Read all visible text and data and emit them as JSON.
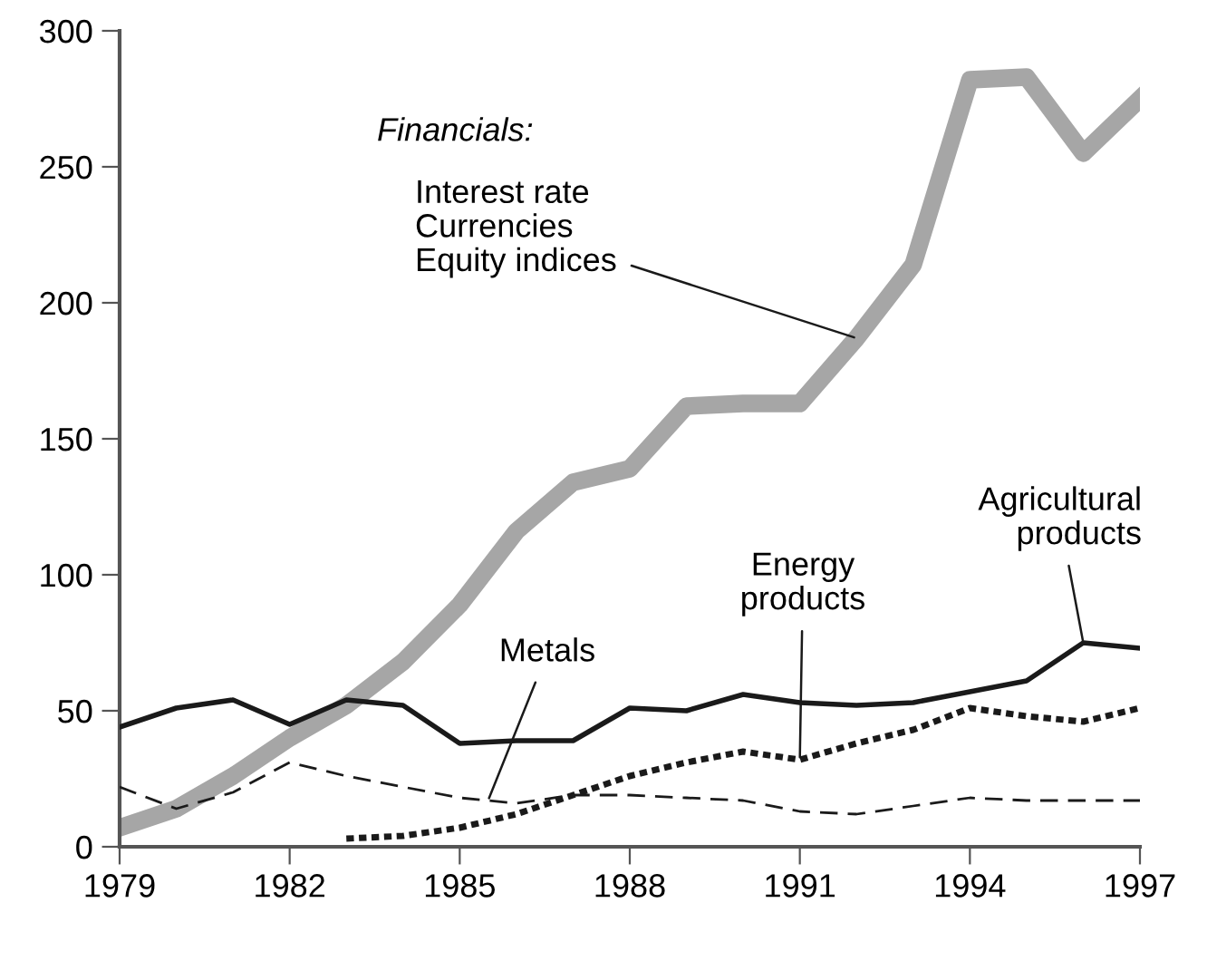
{
  "chart_data": {
    "type": "line",
    "x": [
      1979,
      1980,
      1981,
      1982,
      1983,
      1984,
      1985,
      1986,
      1987,
      1988,
      1989,
      1990,
      1991,
      1992,
      1993,
      1994,
      1995,
      1996,
      1997
    ],
    "series": [
      {
        "color": "#a6a6a6",
        "line_style": "solid",
        "values": [
          7,
          14,
          26,
          40,
          52,
          68,
          89,
          116,
          134,
          139,
          162,
          163,
          163,
          187,
          214,
          282,
          283,
          255,
          275
        ]
      },
      {
        "color": "#1a1a1a",
        "line_style": "solid",
        "values": [
          44,
          51,
          54,
          45,
          54,
          52,
          38,
          39,
          39,
          51,
          50,
          56,
          53,
          52,
          53,
          57,
          61,
          75,
          73
        ]
      },
      {
        "color": "#1a1a1a",
        "line_style": "dashed",
        "values": [
          22,
          14,
          20,
          31,
          26,
          22,
          18,
          16,
          19,
          19,
          18,
          17,
          13,
          12,
          15,
          18,
          17,
          17,
          17
        ]
      },
      {
        "color": "#1a1a1a",
        "line_style": "dotted",
        "values": [
          null,
          null,
          null,
          null,
          3,
          4,
          7,
          12,
          19,
          26,
          31,
          35,
          32,
          38,
          43,
          51,
          48,
          46,
          51
        ]
      }
    ],
    "annotations": [
      "Financials:",
      {
        "text": "Interest rate\nCurrencies\nEquity indices",
        "x": 1992,
        "y": 187
      },
      {
        "text": "Metals",
        "x": 1985.5,
        "y": 17
      },
      {
        "text": "Energy\nproducts",
        "x": 1991,
        "y": 32
      },
      {
        "text": "Agricultural\nproducts",
        "x": 1996,
        "y": 75
      }
    ],
    "xlim": [
      1979,
      1997
    ],
    "ylim": [
      0,
      300
    ],
    "xticks": [
      1979,
      1982,
      1985,
      1988,
      1991,
      1994,
      1997
    ],
    "yticks": [
      0,
      50,
      100,
      150,
      200,
      250,
      300
    ],
    "grid": false
  }
}
